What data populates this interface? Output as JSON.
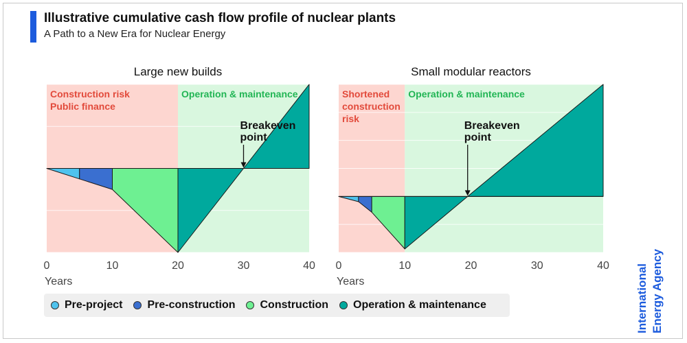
{
  "header": {
    "title": "Illustrative cumulative cash flow profile of nuclear plants",
    "subtitle": "A Path to a New Era for Nuclear Energy"
  },
  "colors": {
    "accent": "#1c5bdd",
    "pre_project": "#4fc3ee",
    "pre_construction": "#3a6fd0",
    "construction": "#6ef092",
    "operation": "#00a99d",
    "risk_zone": "#fdd6d0",
    "operation_zone": "#d9f7df"
  },
  "legend": [
    {
      "key": "pre_project",
      "label": "Pre-project"
    },
    {
      "key": "pre_construction",
      "label": "Pre-construction"
    },
    {
      "key": "construction",
      "label": "Construction"
    },
    {
      "key": "operation",
      "label": "Operation & maintenance"
    }
  ],
  "brand": {
    "line1": "International",
    "line2": "Energy Agency"
  },
  "chart_data": [
    {
      "type": "area",
      "title": "Large new builds",
      "xlabel": "Years",
      "ylabel": "",
      "xlim": [
        0,
        40
      ],
      "ylim": [
        -1.6,
        1.6
      ],
      "xticks": [
        0,
        10,
        20,
        30,
        40
      ],
      "grid": true,
      "zones": [
        {
          "from": 0,
          "to": 20,
          "color_key": "risk_zone",
          "label_lines": [
            "Construction risk",
            "Public finance"
          ]
        },
        {
          "from": 20,
          "to": 40,
          "color_key": "operation_zone",
          "label_lines": [
            "Operation & maintenance"
          ]
        }
      ],
      "series": [
        {
          "key": "pre_project",
          "name": "Pre-project",
          "x": [
            0,
            5
          ],
          "y": [
            0,
            -0.2
          ]
        },
        {
          "key": "pre_construction",
          "name": "Pre-construction",
          "x": [
            5,
            10
          ],
          "y": [
            -0.2,
            -0.4
          ]
        },
        {
          "key": "construction",
          "name": "Construction",
          "x": [
            10,
            20
          ],
          "y": [
            -0.4,
            -1.6
          ]
        },
        {
          "key": "operation",
          "name": "Operation & maintenance",
          "x": [
            20,
            30,
            40
          ],
          "y": [
            -1.6,
            0,
            1.6
          ]
        }
      ],
      "annotation": {
        "lines": [
          "Breakeven",
          "point"
        ],
        "x": 30,
        "y": 0
      }
    },
    {
      "type": "area",
      "title": "Small modular reactors",
      "xlabel": "Years",
      "ylabel": "",
      "xlim": [
        0,
        40
      ],
      "ylim": [
        -1.6,
        3.2
      ],
      "xticks": [
        0,
        10,
        20,
        30,
        40
      ],
      "grid": true,
      "zones": [
        {
          "from": 0,
          "to": 10,
          "color_key": "risk_zone",
          "label_lines": [
            "Shortened",
            "construction",
            "risk"
          ]
        },
        {
          "from": 10,
          "to": 40,
          "color_key": "operation_zone",
          "label_lines": [
            "Operation & maintenance"
          ]
        }
      ],
      "series": [
        {
          "key": "pre_project",
          "name": "Pre-project",
          "x": [
            0,
            3
          ],
          "y": [
            0,
            -0.15
          ]
        },
        {
          "key": "pre_construction",
          "name": "Pre-construction",
          "x": [
            3,
            5
          ],
          "y": [
            -0.15,
            -0.45
          ]
        },
        {
          "key": "construction",
          "name": "Construction",
          "x": [
            5,
            10
          ],
          "y": [
            -0.45,
            -1.5
          ]
        },
        {
          "key": "operation",
          "name": "Operation & maintenance",
          "x": [
            10,
            19.5,
            40
          ],
          "y": [
            -1.5,
            0,
            3.2
          ]
        }
      ],
      "annotation": {
        "lines": [
          "Breakeven",
          "point"
        ],
        "x": 19.5,
        "y": 0
      }
    }
  ]
}
